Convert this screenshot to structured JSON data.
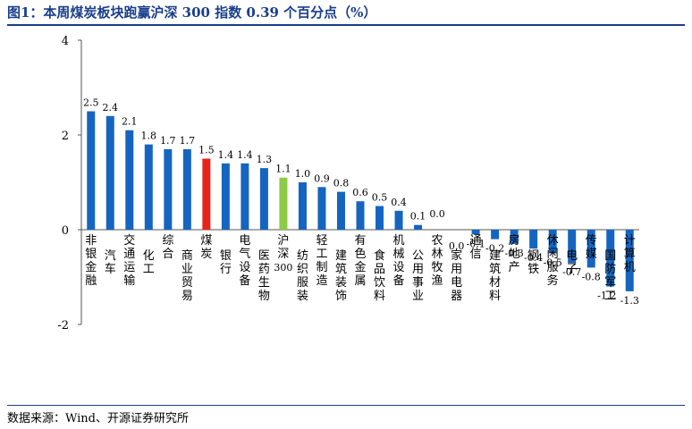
{
  "header": {
    "title": "图1：本周煤炭板块跑赢沪深 300 指数 0.39 个百分点（%）"
  },
  "footer": {
    "source": "数据来源：Wind、开源证券研究所"
  },
  "colors": {
    "default": "#1565c0",
    "highlight": "#e8231a",
    "benchmark": "#8ccb45",
    "title": "#1a3e8c"
  },
  "chart_data": {
    "type": "bar",
    "title": "",
    "xlabel": "",
    "ylabel": "",
    "ylim": [
      -2,
      4
    ],
    "yticks": [
      -2,
      0,
      2,
      4
    ],
    "categories": [
      "非银金融",
      "汽车",
      "交通运输",
      "化工",
      "综合",
      "商业贸易",
      "煤炭",
      "银行",
      "电气设备",
      "医药生物",
      "沪深300",
      "纺织服装",
      "轻工制造",
      "建筑装饰",
      "有色金属",
      "食品饮料",
      "机械设备",
      "公用事业",
      "农林牧渔",
      "家用电器",
      "通信",
      "建筑材料",
      "房地产",
      "钢铁",
      "休闲服务",
      "电子",
      "传媒",
      "国防军工",
      "计算机"
    ],
    "values": [
      2.5,
      2.4,
      2.1,
      1.8,
      1.7,
      1.7,
      1.5,
      1.4,
      1.4,
      1.3,
      1.1,
      1.0,
      0.9,
      0.8,
      0.6,
      0.5,
      0.4,
      0.1,
      0.0,
      0.0,
      -0.1,
      -0.2,
      -0.3,
      -0.4,
      -0.5,
      -0.7,
      -0.8,
      -1.2,
      -1.3
    ],
    "highlight": {
      "煤炭": "highlight",
      "沪深300": "benchmark"
    },
    "grid": false,
    "legend": "none"
  }
}
